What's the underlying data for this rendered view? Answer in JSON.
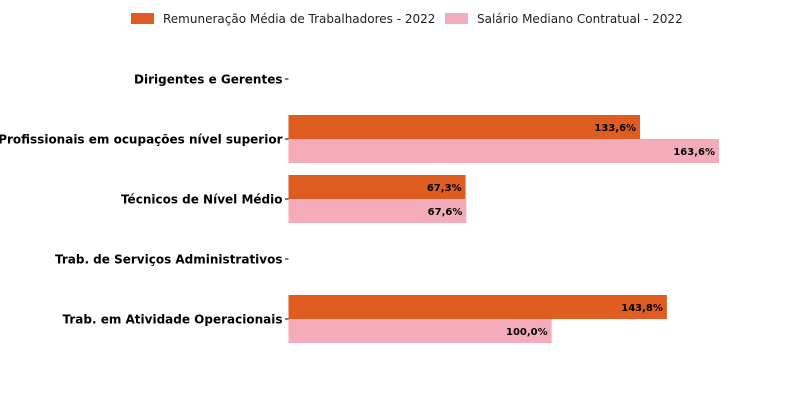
{
  "chart_data": {
    "type": "bar",
    "orientation": "horizontal",
    "categories": [
      "Dirigentes e Gerentes",
      "Profissionais em ocupações nível superior",
      "Técnicos de Nível Médio",
      "Trab. de Serviços Administrativos",
      "Trab. em Atividade Operacionais"
    ],
    "series": [
      {
        "name": "Remuneração Média de Trabalhadores - 2022",
        "color": "#e05d22",
        "values": [
          null,
          133.6,
          67.3,
          null,
          143.8
        ],
        "labels": [
          "",
          "133,6%",
          "67,3%",
          "",
          "143,8%"
        ]
      },
      {
        "name": "Salário Mediano Contratual - 2022",
        "color": "#f4acba",
        "values": [
          null,
          163.6,
          67.6,
          null,
          100.0
        ],
        "labels": [
          "",
          "163,6%",
          "67,6%",
          "",
          "100,0%"
        ]
      }
    ],
    "xlim": [
      0,
      163.6
    ],
    "grid": false,
    "legend_position": "top",
    "title": "",
    "xlabel": "",
    "ylabel": ""
  }
}
